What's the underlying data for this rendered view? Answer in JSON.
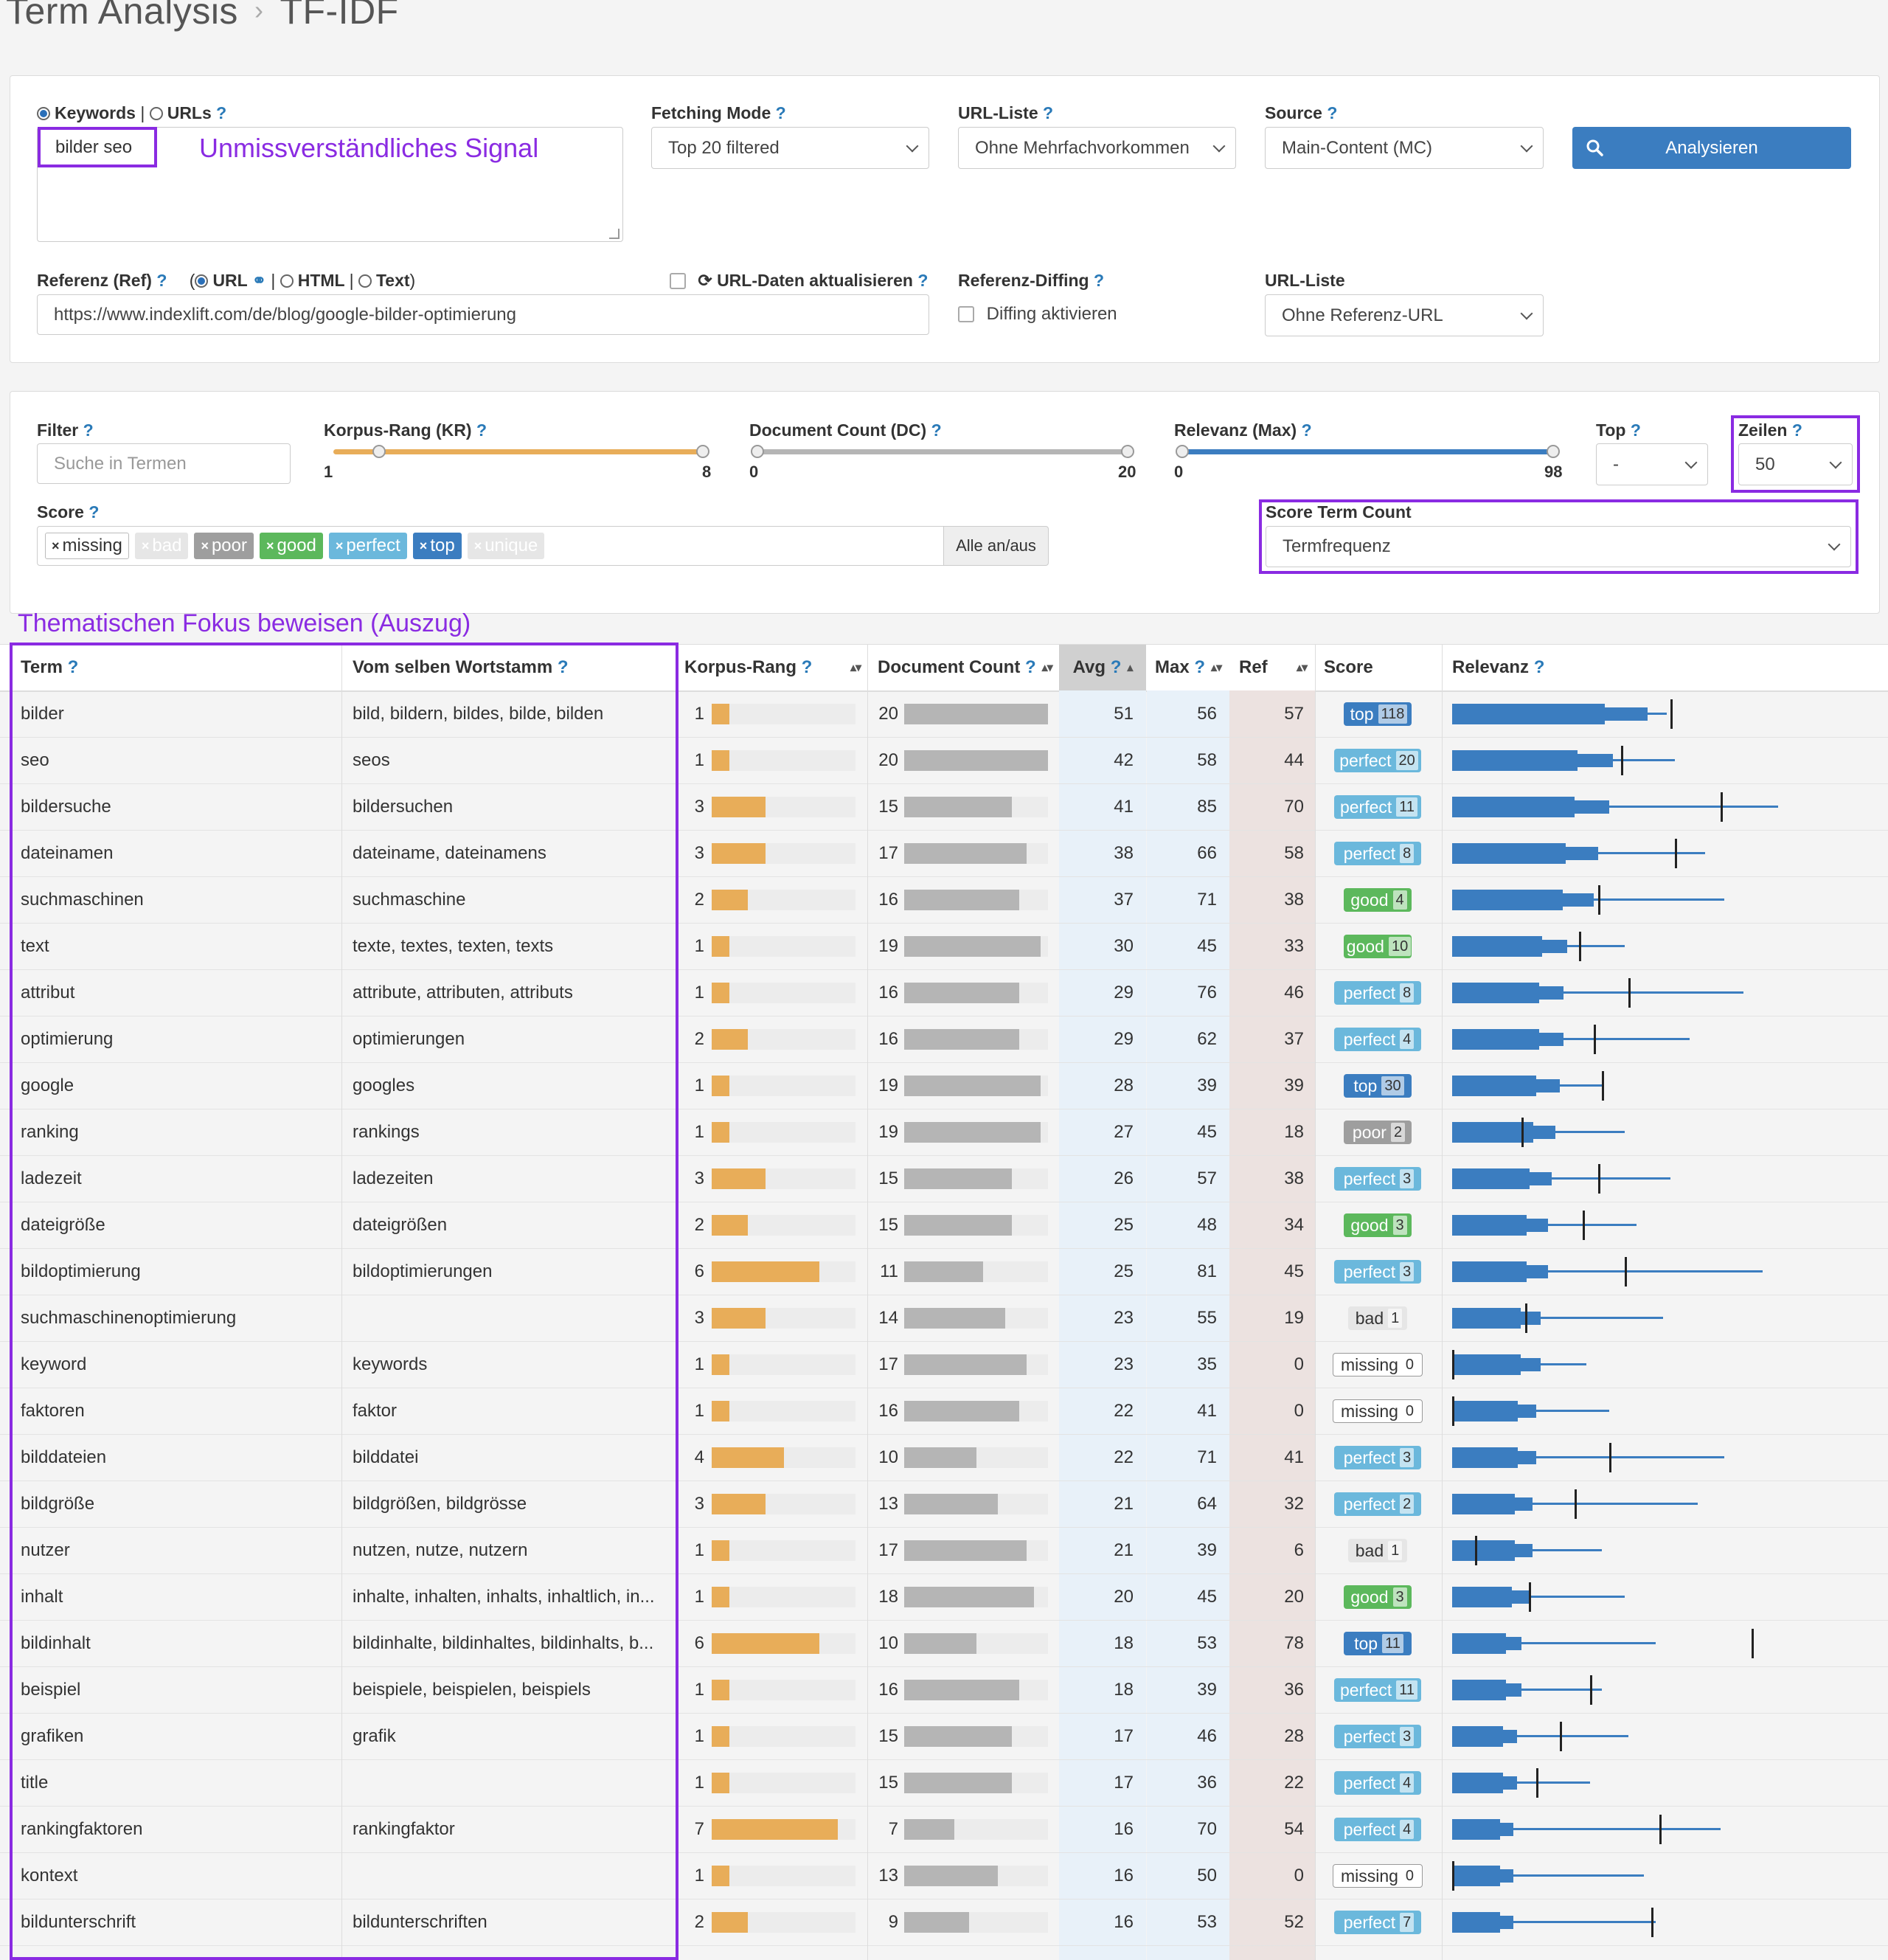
{
  "breadcrumb": {
    "root": "Term Analysis",
    "current": "TF-IDF"
  },
  "query": {
    "mode_keywords": "Keywords",
    "mode_urls": "URLs",
    "help": "?",
    "keyword_value": "bilder seo",
    "annotation": "Unmissverständliches Signal",
    "fetching_mode": {
      "label": "Fetching Mode",
      "value": "Top 20 filtered"
    },
    "url_list": {
      "label": "URL-Liste",
      "value": "Ohne Mehrfachvorkommen"
    },
    "source": {
      "label": "Source",
      "value": "Main-Content (MC)"
    },
    "analyze_label": "Analysieren",
    "reference": {
      "label": "Referenz (Ref)",
      "opt_url": "URL",
      "opt_html": "HTML",
      "opt_text": "Text",
      "refresh_label": "URL-Daten aktualisieren",
      "url_value": "https://www.indexlift.com/de/blog/google-bilder-optimierung"
    },
    "diffing": {
      "label": "Referenz-Diffing",
      "checkbox": "Diffing aktivieren"
    },
    "ref_url_list": {
      "label": "URL-Liste",
      "value": "Ohne Referenz-URL"
    }
  },
  "filters": {
    "filter": {
      "label": "Filter",
      "placeholder": "Suche in Termen"
    },
    "kr": {
      "label": "Korpus-Rang (KR)",
      "min": "1",
      "max": "8"
    },
    "dc": {
      "label": "Document Count (DC)",
      "min": "0",
      "max": "20"
    },
    "rel": {
      "label": "Relevanz (Max)",
      "min": "0",
      "max": "98"
    },
    "top": {
      "label": "Top",
      "value": "-"
    },
    "rows": {
      "label": "Zeilen",
      "value": "50"
    },
    "score_label": "Score",
    "score_tags": [
      {
        "label": "missing",
        "bg": "#ffffff",
        "fg": "#333333",
        "border": "#bbbbbb"
      },
      {
        "label": "bad",
        "bg": "#e6e6e6",
        "fg": "#ffffff",
        "border": "#e6e6e6"
      },
      {
        "label": "poor",
        "bg": "#9e9e9e",
        "fg": "#ffffff",
        "border": "#9e9e9e"
      },
      {
        "label": "good",
        "bg": "#5cb85c",
        "fg": "#ffffff",
        "border": "#5cb85c"
      },
      {
        "label": "perfect",
        "bg": "#6bb8dc",
        "fg": "#ffffff",
        "border": "#6bb8dc"
      },
      {
        "label": "top",
        "bg": "#3b7dc0",
        "fg": "#ffffff",
        "border": "#3b7dc0"
      },
      {
        "label": "unique",
        "bg": "#e6e6e6",
        "fg": "#ffffff",
        "border": "#e6e6e6"
      }
    ],
    "toggle_all": "Alle an/aus",
    "stc": {
      "label": "Score Term Count",
      "value": "Termfrequenz"
    }
  },
  "table_annotation": "Thematischen Fokus beweisen (Auszug)",
  "columns": {
    "term": "Term",
    "stem": "Vom selben Wortstamm",
    "kr": "Korpus-Rang",
    "dc": "Document Count",
    "avg": "Avg",
    "max": "Max",
    "ref": "Ref",
    "score": "Score",
    "rel": "Relevanz"
  },
  "score_colors": {
    "top": "#3b7dc0",
    "perfect": "#6bb8dc",
    "good": "#5cb85c",
    "poor": "#9e9e9e",
    "bad": "#e6e6e6",
    "missing": "#ffffff"
  },
  "rows": [
    {
      "term": "bilder",
      "stem": "bild, bildern, bildes, bilde, bilden",
      "kr": 1,
      "dc": 20,
      "avg": 51,
      "max": 56,
      "ref": 57,
      "score": "top",
      "count": 118
    },
    {
      "term": "seo",
      "stem": "seos",
      "kr": 1,
      "dc": 20,
      "avg": 42,
      "max": 58,
      "ref": 44,
      "score": "perfect",
      "count": 20
    },
    {
      "term": "bildersuche",
      "stem": "bildersuchen",
      "kr": 3,
      "dc": 15,
      "avg": 41,
      "max": 85,
      "ref": 70,
      "score": "perfect",
      "count": 11
    },
    {
      "term": "dateinamen",
      "stem": "dateiname, dateinamens",
      "kr": 3,
      "dc": 17,
      "avg": 38,
      "max": 66,
      "ref": 58,
      "score": "perfect",
      "count": 8
    },
    {
      "term": "suchmaschinen",
      "stem": "suchmaschine",
      "kr": 2,
      "dc": 16,
      "avg": 37,
      "max": 71,
      "ref": 38,
      "score": "good",
      "count": 4
    },
    {
      "term": "text",
      "stem": "texte, textes, texten, texts",
      "kr": 1,
      "dc": 19,
      "avg": 30,
      "max": 45,
      "ref": 33,
      "score": "good",
      "count": 10
    },
    {
      "term": "attribut",
      "stem": "attribute, attributen, attributs",
      "kr": 1,
      "dc": 16,
      "avg": 29,
      "max": 76,
      "ref": 46,
      "score": "perfect",
      "count": 8
    },
    {
      "term": "optimierung",
      "stem": "optimierungen",
      "kr": 2,
      "dc": 16,
      "avg": 29,
      "max": 62,
      "ref": 37,
      "score": "perfect",
      "count": 4
    },
    {
      "term": "google",
      "stem": "googles",
      "kr": 1,
      "dc": 19,
      "avg": 28,
      "max": 39,
      "ref": 39,
      "score": "top",
      "count": 30
    },
    {
      "term": "ranking",
      "stem": "rankings",
      "kr": 1,
      "dc": 19,
      "avg": 27,
      "max": 45,
      "ref": 18,
      "score": "poor",
      "count": 2
    },
    {
      "term": "ladezeit",
      "stem": "ladezeiten",
      "kr": 3,
      "dc": 15,
      "avg": 26,
      "max": 57,
      "ref": 38,
      "score": "perfect",
      "count": 3
    },
    {
      "term": "dateigröße",
      "stem": "dateigrößen",
      "kr": 2,
      "dc": 15,
      "avg": 25,
      "max": 48,
      "ref": 34,
      "score": "good",
      "count": 3
    },
    {
      "term": "bildoptimierung",
      "stem": "bildoptimierungen",
      "kr": 6,
      "dc": 11,
      "avg": 25,
      "max": 81,
      "ref": 45,
      "score": "perfect",
      "count": 3
    },
    {
      "term": "suchmaschinenoptimierung",
      "stem": "",
      "kr": 3,
      "dc": 14,
      "avg": 23,
      "max": 55,
      "ref": 19,
      "score": "bad",
      "count": 1
    },
    {
      "term": "keyword",
      "stem": "keywords",
      "kr": 1,
      "dc": 17,
      "avg": 23,
      "max": 35,
      "ref": 0,
      "score": "missing",
      "count": 0
    },
    {
      "term": "faktoren",
      "stem": "faktor",
      "kr": 1,
      "dc": 16,
      "avg": 22,
      "max": 41,
      "ref": 0,
      "score": "missing",
      "count": 0
    },
    {
      "term": "bilddateien",
      "stem": "bilddatei",
      "kr": 4,
      "dc": 10,
      "avg": 22,
      "max": 71,
      "ref": 41,
      "score": "perfect",
      "count": 3
    },
    {
      "term": "bildgröße",
      "stem": "bildgrößen, bildgrösse",
      "kr": 3,
      "dc": 13,
      "avg": 21,
      "max": 64,
      "ref": 32,
      "score": "perfect",
      "count": 2
    },
    {
      "term": "nutzer",
      "stem": "nutzen, nutze, nutzern",
      "kr": 1,
      "dc": 17,
      "avg": 21,
      "max": 39,
      "ref": 6,
      "score": "bad",
      "count": 1
    },
    {
      "term": "inhalt",
      "stem": "inhalte, inhalten, inhalts, inhaltlich, in...",
      "kr": 1,
      "dc": 18,
      "avg": 20,
      "max": 45,
      "ref": 20,
      "score": "good",
      "count": 3
    },
    {
      "term": "bildinhalt",
      "stem": "bildinhalte, bildinhaltes, bildinhalts, b...",
      "kr": 6,
      "dc": 10,
      "avg": 18,
      "max": 53,
      "ref": 78,
      "score": "top",
      "count": 11
    },
    {
      "term": "beispiel",
      "stem": "beispiele, beispielen, beispiels",
      "kr": 1,
      "dc": 16,
      "avg": 18,
      "max": 39,
      "ref": 36,
      "score": "perfect",
      "count": 11
    },
    {
      "term": "grafiken",
      "stem": "grafik",
      "kr": 1,
      "dc": 15,
      "avg": 17,
      "max": 46,
      "ref": 28,
      "score": "perfect",
      "count": 3
    },
    {
      "term": "title",
      "stem": "",
      "kr": 1,
      "dc": 15,
      "avg": 17,
      "max": 36,
      "ref": 22,
      "score": "perfect",
      "count": 4
    },
    {
      "term": "rankingfaktoren",
      "stem": "rankingfaktor",
      "kr": 7,
      "dc": 7,
      "avg": 16,
      "max": 70,
      "ref": 54,
      "score": "perfect",
      "count": 4
    },
    {
      "term": "kontext",
      "stem": "",
      "kr": 1,
      "dc": 13,
      "avg": 16,
      "max": 50,
      "ref": 0,
      "score": "missing",
      "count": 0
    },
    {
      "term": "bildunterschrift",
      "stem": "bildunterschriften",
      "kr": 2,
      "dc": 9,
      "avg": 16,
      "max": 53,
      "ref": 52,
      "score": "perfect",
      "count": 7
    }
  ]
}
